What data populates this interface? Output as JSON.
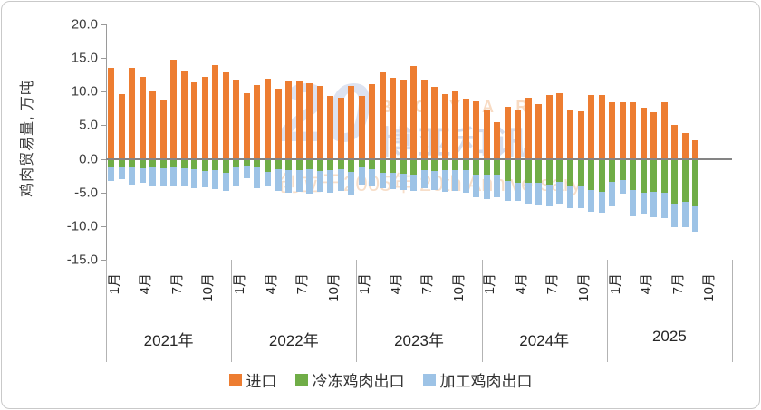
{
  "chart_data": {
    "type": "bar",
    "stacked": true,
    "ylabel": "鸡肉贸易量, 万吨",
    "ylim": [
      -15,
      20
    ],
    "ytick_step": 5,
    "yticks": [
      "20.0",
      "15.0",
      "10.0",
      "5.0",
      "0.0",
      "-5.0",
      "-10.0",
      "-15.0"
    ],
    "grid": false,
    "legend_position": "bottom",
    "years": [
      "2021年",
      "2022年",
      "2023年",
      "2024年",
      "2025"
    ],
    "months_per_year": [
      12,
      12,
      12,
      12,
      9
    ],
    "month_ticks": [
      "1月",
      "4月",
      "7月",
      "10月"
    ],
    "month_tick_slots": [
      0,
      3,
      6,
      9
    ],
    "series": [
      {
        "key": "import",
        "name": "进口",
        "color": "#ED7D31",
        "values": [
          13.5,
          9.7,
          13.5,
          12.2,
          10.1,
          8.8,
          14.8,
          13.2,
          11.4,
          12.2,
          14.0,
          13.0,
          11.8,
          9.8,
          11.0,
          11.9,
          10.5,
          11.6,
          11.7,
          11.2,
          10.9,
          9.4,
          9.1,
          10.8,
          9.4,
          11.1,
          13.0,
          12.1,
          11.8,
          13.8,
          11.8,
          10.7,
          9.7,
          10.0,
          8.9,
          8.6,
          7.4,
          5.5,
          7.8,
          7.2,
          9.1,
          8.2,
          9.5,
          9.8,
          7.2,
          7.1,
          9.5,
          9.5,
          8.4,
          8.4,
          8.4,
          7.6,
          6.9,
          8.4,
          5.0,
          3.9,
          2.8
        ]
      },
      {
        "key": "frozen-export",
        "name": "冷冻鸡肉出口",
        "color": "#70AD47",
        "values": [
          -1.1,
          -1.2,
          -1.3,
          -1.4,
          -1.3,
          -1.4,
          -1.2,
          -1.4,
          -1.5,
          -1.8,
          -1.7,
          -2.1,
          -1.2,
          -1.0,
          -1.3,
          -1.9,
          -1.5,
          -1.7,
          -1.7,
          -1.6,
          -1.8,
          -1.7,
          -1.5,
          -2.0,
          -1.3,
          -1.5,
          -2.1,
          -2.1,
          -2.2,
          -2.3,
          -1.7,
          -1.8,
          -1.7,
          -1.7,
          -1.7,
          -2.3,
          -2.4,
          -2.4,
          -3.3,
          -3.5,
          -3.5,
          -3.6,
          -3.8,
          -3.4,
          -4.1,
          -4.1,
          -4.6,
          -4.9,
          -3.4,
          -3.1,
          -4.7,
          -5.0,
          -4.9,
          -5.1,
          -6.6,
          -6.4,
          -7.0
        ]
      },
      {
        "key": "processed-export",
        "name": "加工鸡肉出口",
        "color": "#9DC3E6",
        "values": [
          -2.2,
          -1.8,
          -2.5,
          -2.1,
          -2.7,
          -2.5,
          -2.9,
          -2.6,
          -2.8,
          -2.4,
          -2.8,
          -2.7,
          -2.7,
          -1.9,
          -3.0,
          -2.2,
          -3.3,
          -3.4,
          -3.2,
          -3.6,
          -3.1,
          -3.4,
          -3.3,
          -3.3,
          -2.5,
          -2.6,
          -2.3,
          -2.4,
          -2.5,
          -2.5,
          -2.7,
          -2.9,
          -3.2,
          -3.1,
          -3.4,
          -3.4,
          -3.6,
          -3.3,
          -2.9,
          -2.8,
          -3.1,
          -3.2,
          -3.2,
          -3.3,
          -3.2,
          -3.2,
          -3.3,
          -3.1,
          -3.6,
          -2.1,
          -3.8,
          -3.2,
          -3.8,
          -3.7,
          -3.6,
          -3.7,
          -3.8
        ]
      }
    ]
  },
  "watermark": {
    "big": "20",
    "boyar": "B O Y A R",
    "name": "博亚和讯",
    "sub": "创立于2005年  20th Anniversary"
  }
}
